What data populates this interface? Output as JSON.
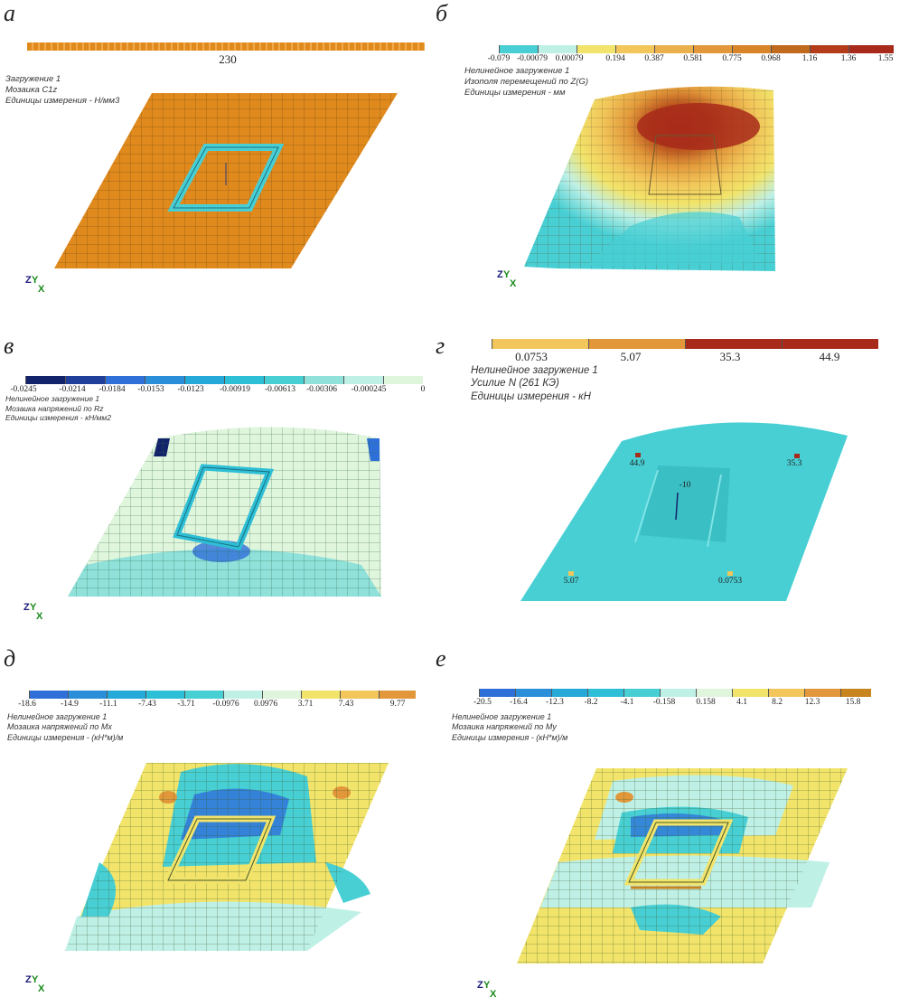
{
  "panels": {
    "a": {
      "label": "а",
      "scale_value": "230",
      "info": [
        "Загружение 1",
        "Мозаика C1z",
        "Единицы измерения - Н/мм3"
      ]
    },
    "b": {
      "label": "б",
      "ticks": [
        "-0.079",
        "-0.00079",
        "0.00079",
        "0.194",
        "0.387",
        "0.581",
        "0.775",
        "0.968",
        "1.16",
        "1.36",
        "1.55"
      ],
      "info": [
        "Нелинейное загружение 1",
        "Изополя перемещений по Z(G)",
        "Единицы измерения - мм"
      ]
    },
    "v": {
      "label": "в",
      "ticks": [
        "-0.0245",
        "-0.0214",
        "-0.0184",
        "-0.0153",
        "-0.0123",
        "-0.00919",
        "-0.00613",
        "-0.00306",
        "-0.000245",
        "0"
      ],
      "info": [
        "Нелинейное загружение 1",
        "Мозаика напряжений по Rz",
        "Единицы измерения - кН/мм2"
      ]
    },
    "g": {
      "label": "г",
      "ticks": [
        "0.0753",
        "5.07",
        "35.3",
        "44.9"
      ],
      "info": [
        "Нелинейное загружение 1",
        "Усилие N (261 КЭ)",
        "Единицы измерения - кН"
      ],
      "markers": [
        "44.9",
        "35.3",
        "5.07",
        "0.0753"
      ],
      "center_label": "-10"
    },
    "d": {
      "label": "д",
      "ticks": [
        "-18.6",
        "-14.9",
        "-11.1",
        "-7.43",
        "-3.71",
        "-0.0976",
        "0.0976",
        "3.71",
        "7.43",
        "9.77"
      ],
      "info": [
        "Нелинейное загружение 1",
        "Мозаика напряжений по Mx",
        "Единицы измерения - (кН*м)/м"
      ]
    },
    "e": {
      "label": "е",
      "ticks": [
        "-20.5",
        "-16.4",
        "-12.3",
        "-8.2",
        "-4.1",
        "-0.158",
        "0.158",
        "4.1",
        "8.2",
        "12.3",
        "15.8"
      ],
      "info": [
        "Нелинейное загружение 1",
        "Мозаика напряжений по My",
        "Единицы измерения - (кН*м)/м"
      ]
    }
  },
  "axis_labels": {
    "z": "Z",
    "y": "Y",
    "x": "X"
  },
  "colors": {
    "orange": "#e08a1e",
    "cyan": "#47cfd4",
    "pale_green": "#dff5dc",
    "yellow": "#f2e46a",
    "dark_red": "#a82a1a",
    "blue": "#2f6fd8",
    "navy": "#12236b"
  }
}
